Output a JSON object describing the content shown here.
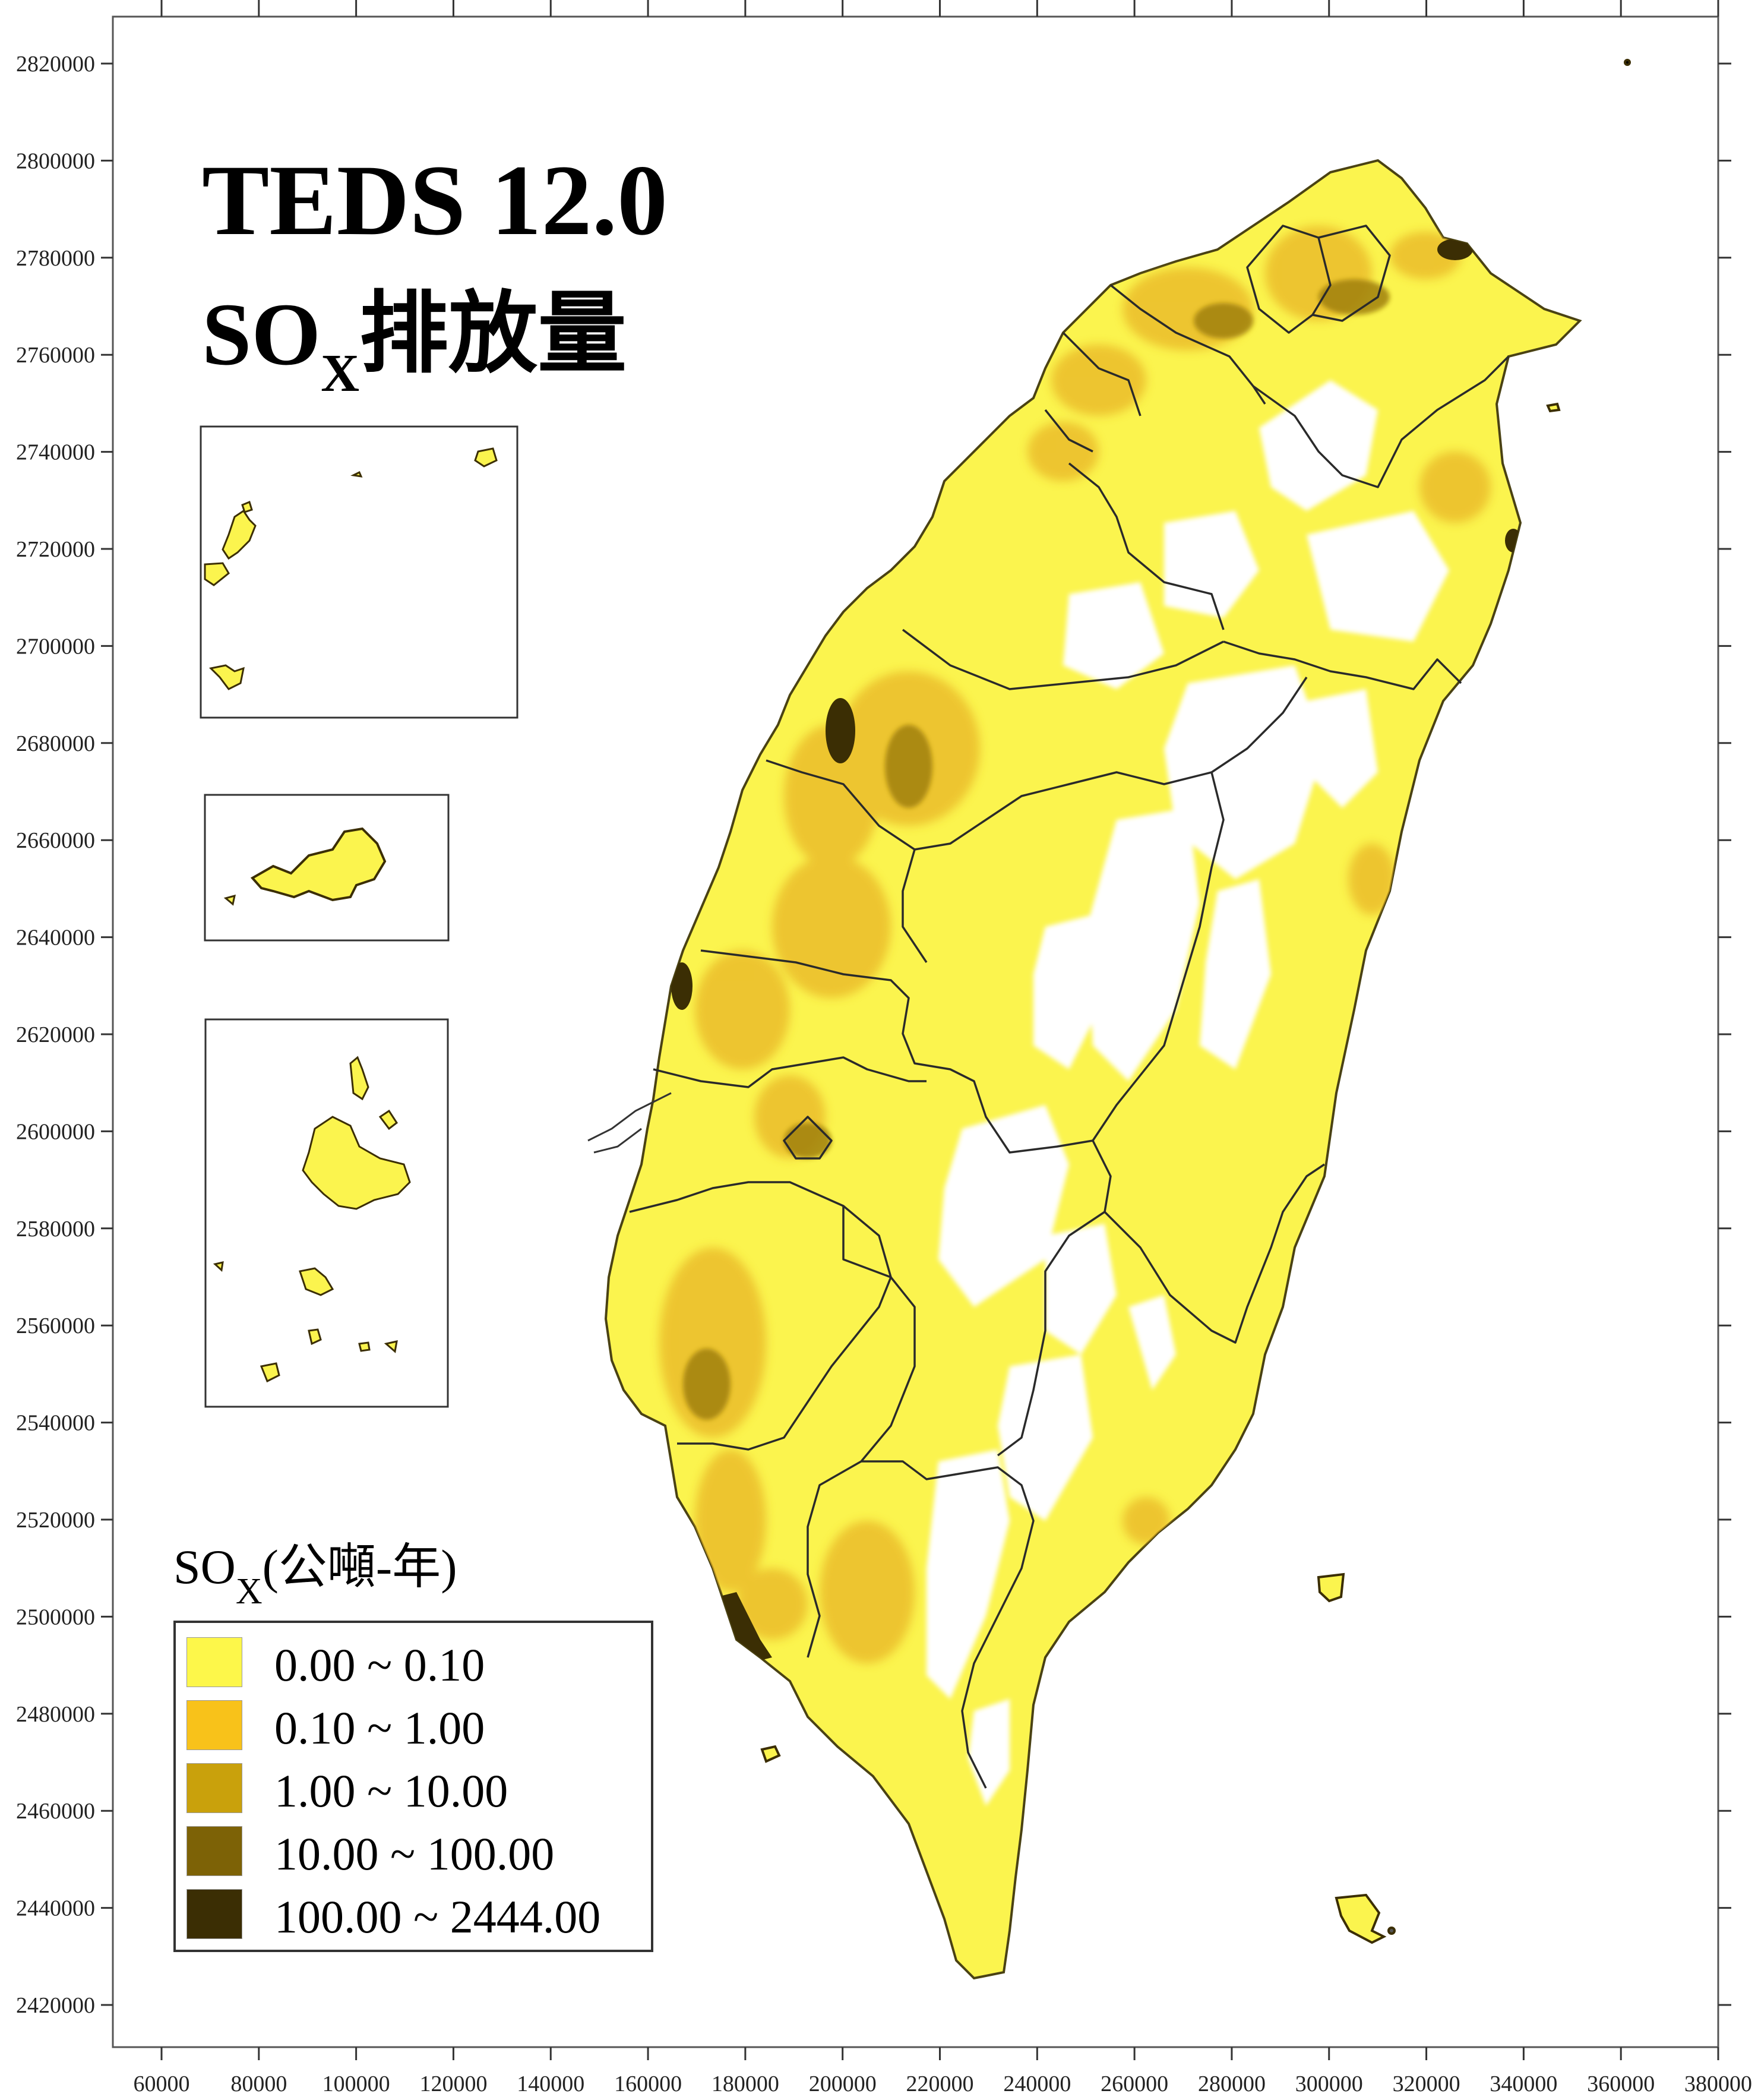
{
  "title": {
    "line1": "TEDS 12.0",
    "line2_main": "SO",
    "line2_sub": "X",
    "line2_rest": "排放量"
  },
  "axes": {
    "x_ticks": [
      "60000",
      "80000",
      "100000",
      "120000",
      "140000",
      "160000",
      "180000",
      "200000",
      "220000",
      "240000",
      "260000",
      "280000",
      "300000",
      "320000",
      "340000",
      "360000",
      "380000"
    ],
    "y_ticks": [
      "2820000",
      "2800000",
      "2780000",
      "2760000",
      "2740000",
      "2720000",
      "2700000",
      "2680000",
      "2660000",
      "2640000",
      "2620000",
      "2600000",
      "2580000",
      "2560000",
      "2540000",
      "2520000",
      "2500000",
      "2480000",
      "2460000",
      "2440000",
      "2420000"
    ]
  },
  "legend": {
    "title_main": "SO",
    "title_sub": "X",
    "title_rest": "(公噸-年)",
    "classes": [
      {
        "label": "0.00  ~  0.10",
        "color": "#fdf74a"
      },
      {
        "label": "0.10  ~  1.00",
        "color": "#f8c21a"
      },
      {
        "label": "1.00  ~  10.00",
        "color": "#c9a10c"
      },
      {
        "label": "10.00  ~  100.00",
        "color": "#7d6206"
      },
      {
        "label": "100.00  ~  2444.00",
        "color": "#3b2e04"
      }
    ]
  },
  "colors": {
    "land_base": "#fbf44e",
    "low": "#f6e23a",
    "mid": "#e8b623",
    "high": "#b48d12",
    "very_high": "#3b2e04",
    "boundary": "#222222"
  }
}
